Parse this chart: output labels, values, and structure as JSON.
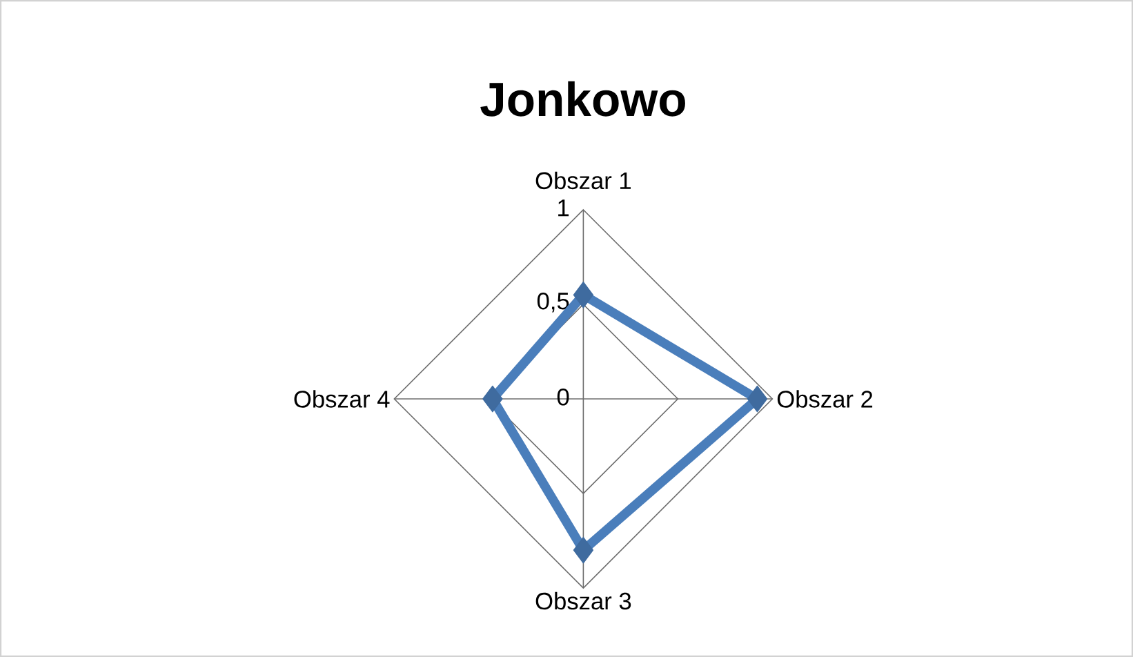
{
  "chart_data": {
    "type": "radar",
    "title": "Jonkowo",
    "categories": [
      "Obszar 1",
      "Obszar 2",
      "Obszar 3",
      "Obszar 4"
    ],
    "series": [
      {
        "color": "#4a7ebb",
        "values": [
          0.55,
          0.92,
          0.8,
          0.48
        ]
      }
    ],
    "ylim": [
      0,
      1
    ],
    "yticks": [
      0,
      {
        "value": 0.5,
        "label": "0,5"
      },
      1
    ],
    "grid": true,
    "marker": "diamond"
  }
}
